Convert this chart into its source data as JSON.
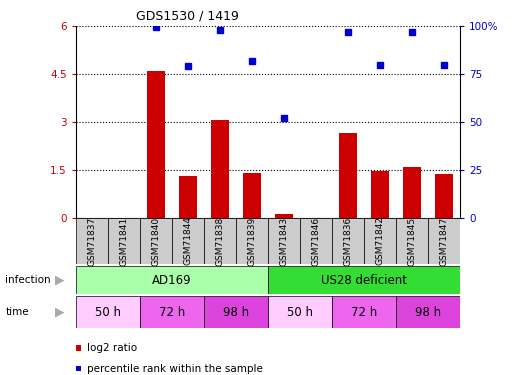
{
  "title": "GDS1530 / 1419",
  "samples": [
    "GSM71837",
    "GSM71841",
    "GSM71840",
    "GSM71844",
    "GSM71838",
    "GSM71839",
    "GSM71843",
    "GSM71846",
    "GSM71836",
    "GSM71842",
    "GSM71845",
    "GSM71847"
  ],
  "log2_ratio": [
    0.0,
    0.0,
    4.6,
    1.3,
    3.05,
    1.4,
    0.12,
    0.0,
    2.65,
    1.45,
    1.6,
    1.35
  ],
  "percentile_rank": [
    null,
    null,
    99.5,
    79,
    98,
    82,
    52,
    null,
    97,
    80,
    97,
    80
  ],
  "bar_color": "#cc0000",
  "dot_color": "#0000cc",
  "ylim_left": [
    0,
    6
  ],
  "ylim_right": [
    0,
    100
  ],
  "yticks_left": [
    0,
    1.5,
    3,
    4.5,
    6
  ],
  "yticks_right": [
    0,
    25,
    50,
    75,
    100
  ],
  "ytick_labels_left": [
    "0",
    "1.5",
    "3",
    "4.5",
    "6"
  ],
  "ytick_labels_right": [
    "0",
    "25",
    "50",
    "75",
    "100%"
  ],
  "infection_groups": [
    {
      "label": "AD169",
      "start": 0,
      "end": 6,
      "color": "#aaffaa"
    },
    {
      "label": "US28 deficient",
      "start": 6,
      "end": 12,
      "color": "#33dd33"
    }
  ],
  "time_groups": [
    {
      "label": "50 h",
      "start": 0,
      "end": 2,
      "color": "#ffccff"
    },
    {
      "label": "72 h",
      "start": 2,
      "end": 4,
      "color": "#ee66ee"
    },
    {
      "label": "98 h",
      "start": 4,
      "end": 6,
      "color": "#dd44dd"
    },
    {
      "label": "50 h",
      "start": 6,
      "end": 8,
      "color": "#ffccff"
    },
    {
      "label": "72 h",
      "start": 8,
      "end": 10,
      "color": "#ee66ee"
    },
    {
      "label": "98 h",
      "start": 10,
      "end": 12,
      "color": "#dd44dd"
    }
  ],
  "legend_items": [
    {
      "label": "log2 ratio",
      "color": "#cc0000"
    },
    {
      "label": "percentile rank within the sample",
      "color": "#0000cc"
    }
  ],
  "bg_color": "#ffffff",
  "sample_box_color": "#cccccc",
  "arrow_color": "#aaaaaa"
}
